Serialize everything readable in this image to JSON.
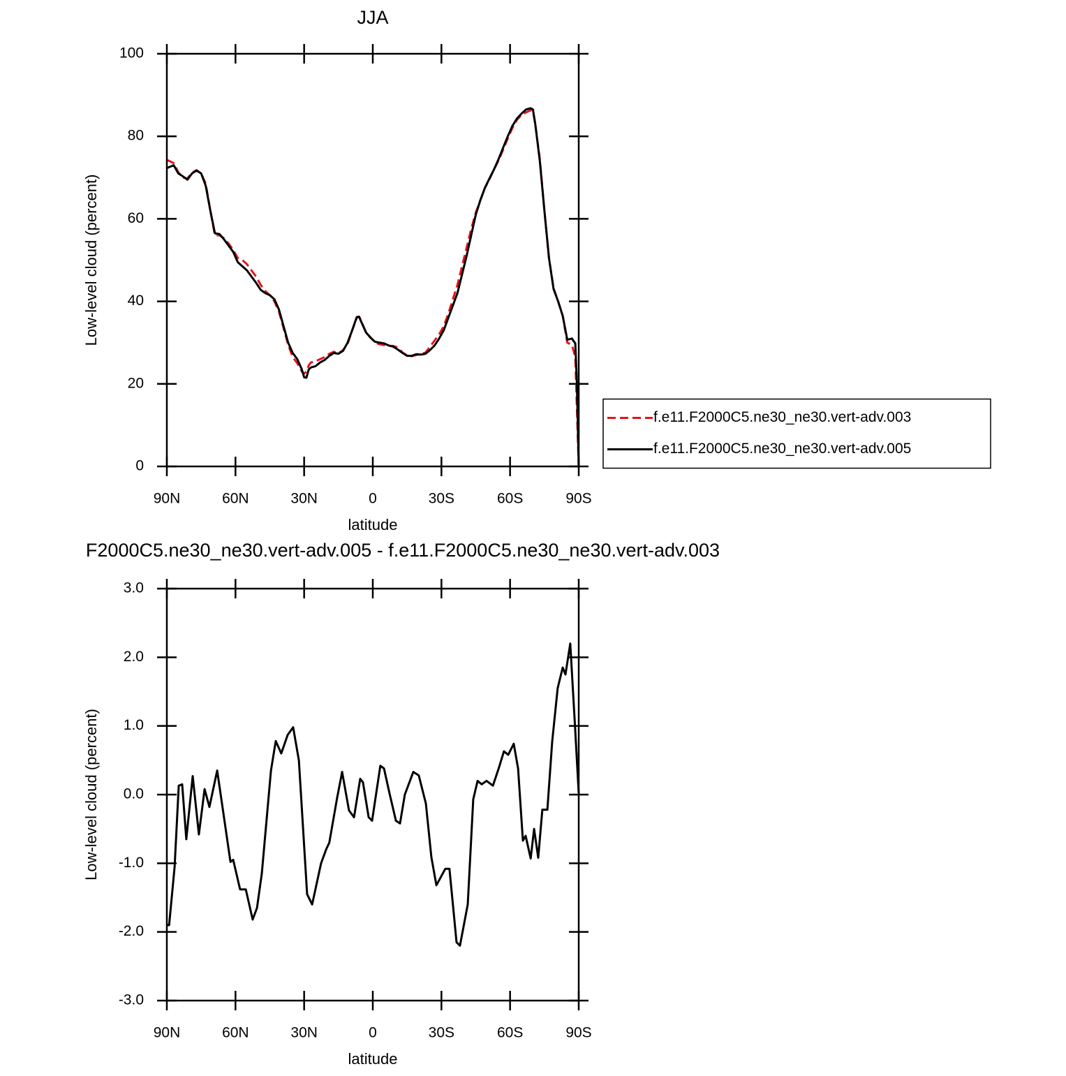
{
  "chart_data": [
    {
      "type": "line",
      "title": "JJA",
      "xlabel": "latitude",
      "ylabel": "Low-level cloud (percent)",
      "xlim": [
        90,
        -90
      ],
      "xticks": [
        {
          "value": 90,
          "label": "90N"
        },
        {
          "value": 60,
          "label": "60N"
        },
        {
          "value": 30,
          "label": "30N"
        },
        0,
        {
          "value": -30,
          "label": "30S"
        },
        {
          "value": -60,
          "label": "60S"
        },
        {
          "value": -90,
          "label": "90S"
        }
      ],
      "ylim": [
        0,
        100
      ],
      "yticks": [
        0,
        20,
        40,
        60,
        80,
        100
      ],
      "legend": "right",
      "x": [
        90,
        87,
        85,
        83,
        81,
        79,
        77,
        75,
        73,
        71,
        69,
        67,
        65,
        63,
        61,
        59,
        57,
        55,
        53,
        51,
        49,
        47,
        45,
        43,
        41,
        39,
        37,
        35,
        33,
        31,
        30,
        29,
        28,
        27,
        25,
        23,
        21,
        19,
        17,
        15,
        13,
        11,
        9,
        7,
        6,
        5,
        3,
        1,
        -1,
        -3,
        -5,
        -7,
        -9,
        -11,
        -13,
        -15,
        -17,
        -19,
        -21,
        -23,
        -25,
        -27,
        -29,
        -31,
        -33,
        -35,
        -37,
        -39,
        -41,
        -43,
        -45,
        -47,
        -49,
        -51,
        -53,
        -55,
        -57,
        -59,
        -61,
        -63,
        -65,
        -67,
        -69,
        -70,
        -71,
        -73,
        -75,
        -77,
        -79,
        -81,
        -83,
        -85,
        -87,
        -88.5,
        -89.2,
        -90
      ],
      "series": [
        {
          "name": "f.e11.F2000C5.ne30_ne30.vert-adv.003",
          "color": "#e8131b",
          "dash": true,
          "values": [
            74.3,
            73.5,
            71.3,
            70,
            69.8,
            71.2,
            71.8,
            71,
            68.5,
            62,
            56,
            56,
            55.3,
            54,
            52.5,
            50.5,
            50,
            49,
            47.5,
            46,
            44,
            42.5,
            41.5,
            40,
            37.5,
            33.5,
            29.5,
            26.5,
            25,
            23,
            22.5,
            23,
            24.5,
            25.2,
            25.5,
            26,
            26.5,
            27.3,
            27.8,
            27.4,
            28.2,
            29.7,
            33,
            36,
            36.3,
            35.2,
            32.5,
            31.3,
            30,
            29.6,
            29.4,
            29.2,
            29.2,
            28.8,
            27.6,
            26.9,
            26.7,
            27,
            27.2,
            27.6,
            29,
            30.5,
            32,
            34,
            37,
            40.5,
            44,
            48.5,
            53,
            57.5,
            61.5,
            64.5,
            67.5,
            69.6,
            72,
            74.2,
            76.8,
            79.5,
            82,
            84,
            85.2,
            85.8,
            86.3,
            86,
            83,
            74.5,
            62,
            50.5,
            43.2,
            40,
            36.5,
            30,
            29.5,
            26.5,
            14,
            0
          ]
        },
        {
          "name": "f.e11.F2000C5.ne30_ne30.vert-adv.005",
          "color": "#000000",
          "dash": false,
          "values": [
            72.3,
            73,
            71,
            70.3,
            69.5,
            71,
            71.7,
            71,
            68,
            62,
            56.5,
            56.3,
            55,
            53.5,
            52,
            49.5,
            48.5,
            47.5,
            46,
            44.5,
            42.8,
            42,
            41.5,
            40.5,
            38,
            34,
            30,
            27.5,
            26,
            23.5,
            21.6,
            21.5,
            23.5,
            24,
            24.3,
            25.2,
            25.8,
            26.8,
            27.5,
            27.3,
            28,
            30,
            33,
            36.2,
            36.3,
            35,
            32.5,
            31.2,
            30.2,
            30,
            29.8,
            29.3,
            29,
            28.3,
            27.5,
            26.8,
            26.8,
            27.2,
            27.1,
            27.3,
            28.2,
            29.3,
            31,
            33,
            36,
            39,
            42,
            46.5,
            51,
            56,
            61,
            64.5,
            67.5,
            69.8,
            72,
            74.5,
            77.3,
            80,
            82.5,
            84.3,
            85.5,
            86.5,
            86.8,
            86.5,
            83,
            74,
            62,
            50.5,
            43,
            40,
            36.5,
            30.7,
            31,
            29.8,
            20,
            0
          ]
        }
      ]
    },
    {
      "type": "line",
      "title": "F2000C5.ne30_ne30.vert-adv.005 - f.e11.F2000C5.ne30_ne30.vert-adv.003",
      "xlabel": "latitude",
      "ylabel": "Low-level cloud (percent)",
      "xlim": [
        90,
        -90
      ],
      "xticks": [
        {
          "value": 90,
          "label": "90N"
        },
        {
          "value": 60,
          "label": "60N"
        },
        {
          "value": 30,
          "label": "30N"
        },
        0,
        {
          "value": -30,
          "label": "30S"
        },
        {
          "value": -60,
          "label": "60S"
        },
        {
          "value": -90,
          "label": "90S"
        }
      ],
      "ylim": [
        -3,
        3
      ],
      "yticks": [
        {
          "value": -3,
          "label": "-3.0"
        },
        {
          "value": -2,
          "label": "-2.0"
        },
        {
          "value": -1,
          "label": "-1.0"
        },
        {
          "value": 0,
          "label": "0.0"
        },
        {
          "value": 1,
          "label": "1.0"
        },
        {
          "value": 2,
          "label": "2.0"
        },
        {
          "value": 3,
          "label": "3.0"
        }
      ],
      "x": [
        90,
        89,
        86.6,
        84.8,
        83.3,
        81.5,
        78.7,
        76,
        73.5,
        71.4,
        68,
        65.9,
        62.2,
        61,
        58,
        55.5,
        52.5,
        50.6,
        48.5,
        44.5,
        42.4,
        40,
        37.2,
        34.8,
        32.3,
        28.7,
        26.5,
        22.6,
        20.4,
        19,
        15.6,
        13.4,
        10.4,
        8.2,
        5.5,
        4.3,
        1.8,
        0.3,
        -3.3,
        -4.9,
        -7.3,
        -10.1,
        -11.9,
        -14,
        -17.7,
        -20.1,
        -23.2,
        -25.6,
        -27.8,
        -31.7,
        -33.5,
        -36.6,
        -38.1,
        -41.5,
        -43.9,
        -45.8,
        -47.6,
        -49.7,
        -52.5,
        -55.2,
        -57.3,
        -59.2,
        -61.6,
        -63.5,
        -65.6,
        -66.8,
        -69,
        -70.5,
        -72.3,
        -74.1,
        -76.3,
        -78.4,
        -80.8,
        -83,
        -84.2,
        -86.3,
        -88.2,
        -90
      ],
      "series": [
        {
          "color": "#000000",
          "dash": false,
          "values": [
            -1.9,
            -1.9,
            -1.05,
            0.13,
            0.15,
            -0.65,
            0.27,
            -0.58,
            0.08,
            -0.18,
            0.35,
            -0.13,
            -0.98,
            -0.95,
            -1.38,
            -1.38,
            -1.82,
            -1.65,
            -1.15,
            0.35,
            0.78,
            0.6,
            0.87,
            0.98,
            0.5,
            -1.45,
            -1.6,
            -1.0,
            -0.8,
            -0.7,
            -0.05,
            0.33,
            -0.23,
            -0.33,
            0.23,
            0.18,
            -0.33,
            -0.38,
            0.42,
            0.38,
            0.02,
            -0.38,
            -0.42,
            0.0,
            0.33,
            0.28,
            -0.13,
            -0.91,
            -1.32,
            -1.08,
            -1.08,
            -2.15,
            -2.2,
            -1.6,
            -0.07,
            0.2,
            0.15,
            0.2,
            0.13,
            0.4,
            0.63,
            0.58,
            0.74,
            0.38,
            -0.67,
            -0.6,
            -0.93,
            -0.5,
            -0.92,
            -0.22,
            -0.22,
            0.77,
            1.55,
            1.85,
            1.75,
            2.2,
            1.1,
            0.02
          ]
        }
      ]
    }
  ]
}
